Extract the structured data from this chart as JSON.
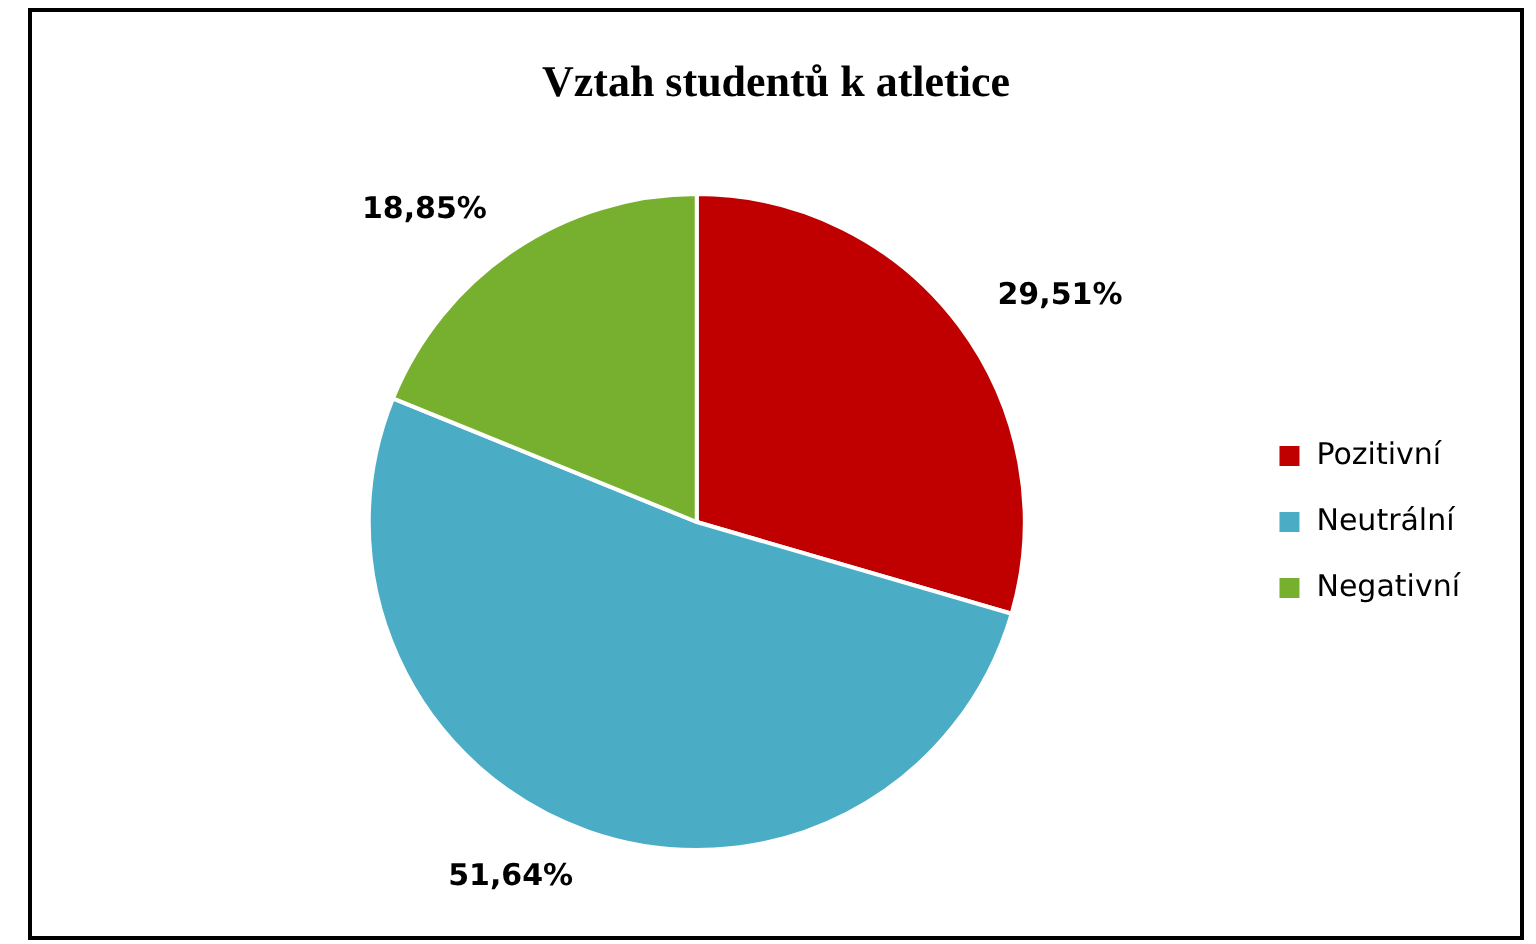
{
  "chart_data": {
    "type": "pie",
    "title": "Vztah studentů k atletice",
    "categories": [
      "Pozitivní",
      "Neutrální",
      "Negativní"
    ],
    "values": [
      29.51,
      51.64,
      18.85
    ],
    "colors": [
      "#c00000",
      "#4bacc6",
      "#77b02f"
    ],
    "value_labels": [
      "29,51%",
      "51,64%",
      "18,85%"
    ],
    "legend": "right"
  }
}
